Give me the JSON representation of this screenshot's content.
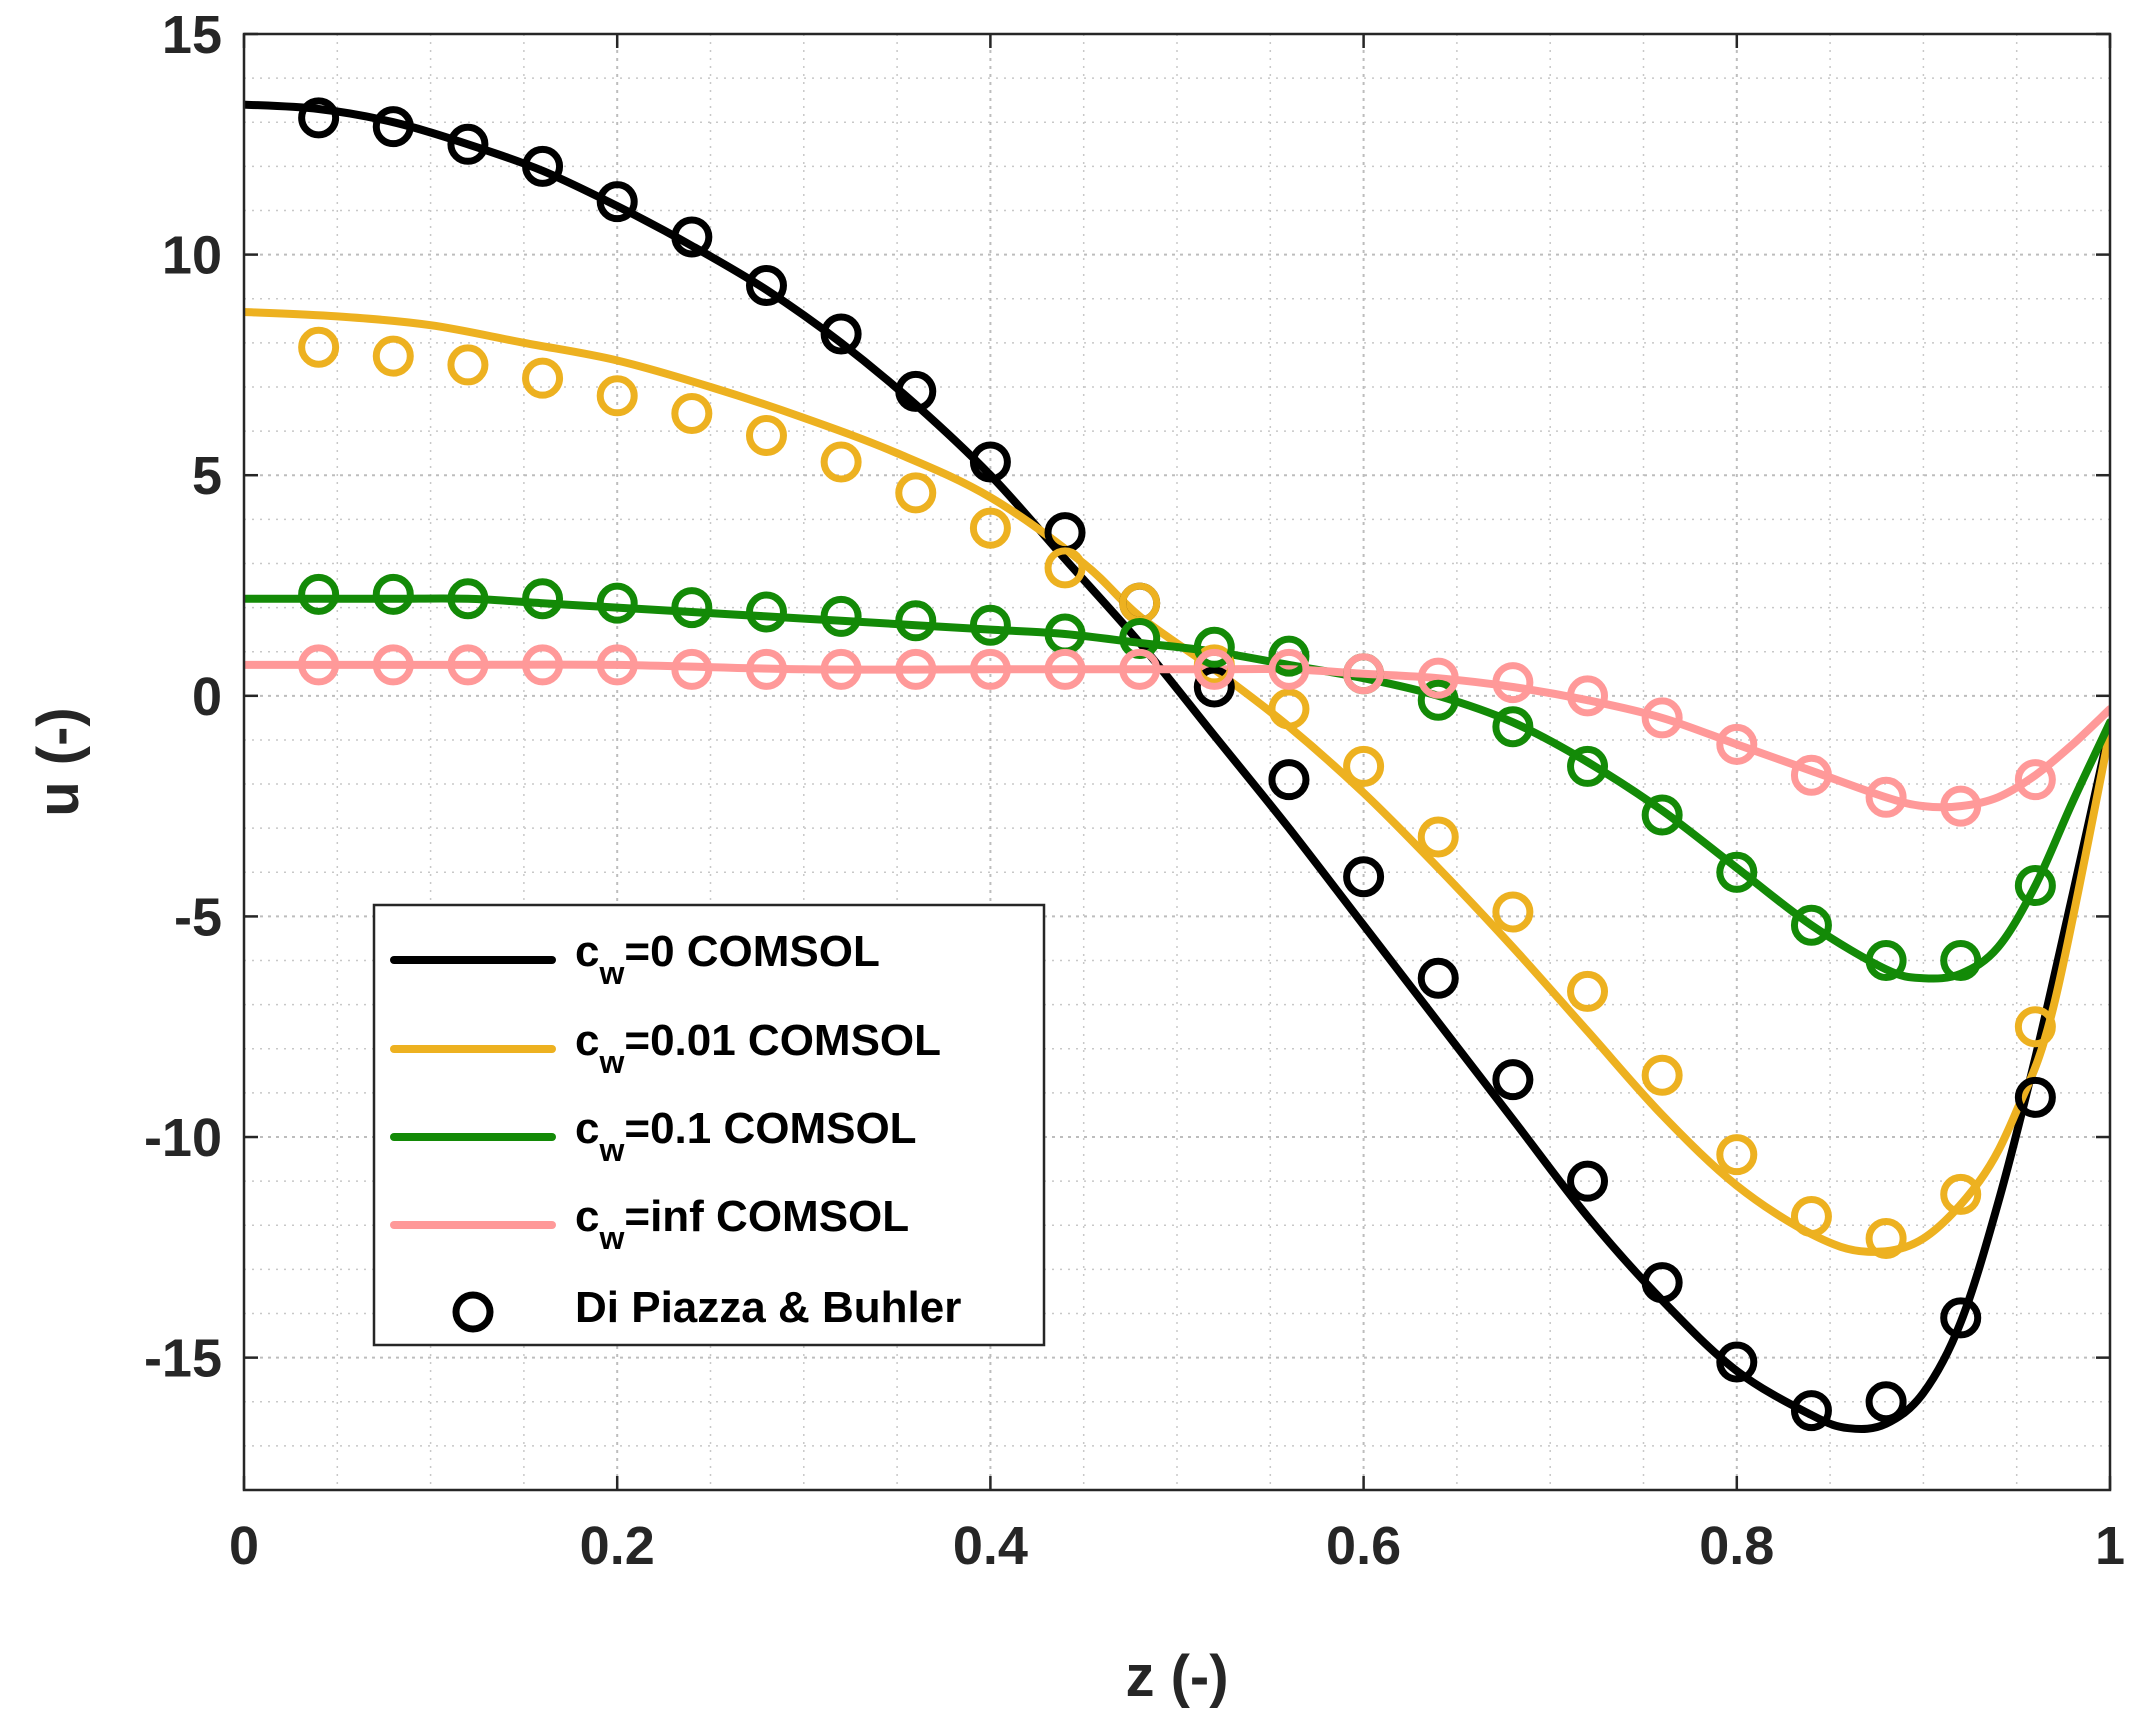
{
  "chart_data": {
    "type": "line",
    "title": "",
    "xlabel": "z (-)",
    "ylabel": "u (-)",
    "xlim": [
      0,
      1
    ],
    "ylim": [
      -18,
      15
    ],
    "xticks": [
      0,
      0.2,
      0.4,
      0.6,
      0.8,
      1
    ],
    "xtick_labels": [
      "0",
      "0.2",
      "0.4",
      "0.6",
      "0.8",
      "1"
    ],
    "yticks": [
      -15,
      -10,
      -5,
      0,
      5,
      10,
      15
    ],
    "ytick_labels": [
      "-15",
      "-10",
      "-5",
      "0",
      "5",
      "10",
      "15"
    ],
    "grid": true,
    "minor_grid": true,
    "legend_position": "bottom-left",
    "series": [
      {
        "name": "c_w=0 COMSOL",
        "legend_main": "c",
        "legend_sub": "w",
        "legend_rest": "=0 COMSOL",
        "color": "#000000",
        "kind": "line",
        "x": [
          0,
          0.04,
          0.08,
          0.12,
          0.16,
          0.2,
          0.24,
          0.28,
          0.32,
          0.36,
          0.4,
          0.44,
          0.48,
          0.52,
          0.56,
          0.6,
          0.64,
          0.68,
          0.72,
          0.76,
          0.8,
          0.84,
          0.86,
          0.88,
          0.9,
          0.92,
          0.94,
          0.96,
          0.98,
          1.0
        ],
        "y": [
          13.4,
          13.3,
          13.0,
          12.5,
          11.9,
          11.1,
          10.2,
          9.2,
          8.0,
          6.6,
          5.0,
          3.1,
          1.2,
          -0.9,
          -3.0,
          -5.2,
          -7.4,
          -9.6,
          -11.8,
          -13.7,
          -15.3,
          -16.3,
          -16.6,
          -16.5,
          -15.8,
          -14.2,
          -11.5,
          -8.2,
          -4.5,
          -0.7
        ]
      },
      {
        "name": "c_w=0.01 COMSOL",
        "legend_main": "c",
        "legend_sub": "w",
        "legend_rest": "=0.01 COMSOL",
        "color": "#EDB120",
        "kind": "line",
        "x": [
          0,
          0.05,
          0.1,
          0.15,
          0.2,
          0.25,
          0.3,
          0.35,
          0.4,
          0.45,
          0.48,
          0.52,
          0.56,
          0.6,
          0.64,
          0.68,
          0.72,
          0.76,
          0.8,
          0.84,
          0.87,
          0.9,
          0.93,
          0.95,
          0.97,
          1.0
        ],
        "y": [
          8.7,
          8.6,
          8.4,
          8.0,
          7.6,
          7.0,
          6.3,
          5.5,
          4.5,
          3.0,
          1.8,
          0.6,
          -0.7,
          -2.2,
          -3.9,
          -5.7,
          -7.6,
          -9.5,
          -11.1,
          -12.2,
          -12.6,
          -12.3,
          -11.0,
          -9.4,
          -7.0,
          -0.8
        ]
      },
      {
        "name": "c_w=0.1 COMSOL",
        "legend_main": "c",
        "legend_sub": "w",
        "legend_rest": "=0.1 COMSOL",
        "color": "#138A07",
        "kind": "line",
        "x": [
          0,
          0.04,
          0.08,
          0.12,
          0.16,
          0.2,
          0.24,
          0.28,
          0.32,
          0.36,
          0.4,
          0.44,
          0.48,
          0.52,
          0.56,
          0.6,
          0.64,
          0.68,
          0.72,
          0.76,
          0.8,
          0.84,
          0.88,
          0.9,
          0.92,
          0.94,
          0.96,
          0.98,
          1.0
        ],
        "y": [
          2.2,
          2.2,
          2.2,
          2.2,
          2.1,
          2.0,
          1.9,
          1.8,
          1.7,
          1.6,
          1.5,
          1.4,
          1.2,
          1.0,
          0.7,
          0.4,
          0.0,
          -0.6,
          -1.5,
          -2.6,
          -3.9,
          -5.2,
          -6.2,
          -6.4,
          -6.3,
          -5.7,
          -4.3,
          -2.4,
          -0.6
        ]
      },
      {
        "name": "c_w=inf COMSOL",
        "legend_main": "c",
        "legend_sub": "w",
        "legend_rest": "=inf COMSOL",
        "color": "#FF9999",
        "kind": "line",
        "x": [
          0,
          0.1,
          0.2,
          0.3,
          0.4,
          0.48,
          0.52,
          0.56,
          0.6,
          0.64,
          0.68,
          0.72,
          0.76,
          0.8,
          0.84,
          0.88,
          0.9,
          0.92,
          0.94,
          0.96,
          0.98,
          1.0
        ],
        "y": [
          0.7,
          0.7,
          0.7,
          0.6,
          0.6,
          0.6,
          0.6,
          0.6,
          0.5,
          0.4,
          0.2,
          -0.1,
          -0.5,
          -1.1,
          -1.7,
          -2.3,
          -2.5,
          -2.5,
          -2.3,
          -1.8,
          -1.1,
          -0.3
        ]
      },
      {
        "name": "Di Piazza & Buhler (c_w=0)",
        "color": "#000000",
        "kind": "markers",
        "x": [
          0.04,
          0.08,
          0.12,
          0.16,
          0.2,
          0.24,
          0.28,
          0.32,
          0.36,
          0.4,
          0.44,
          0.48,
          0.52,
          0.56,
          0.6,
          0.64,
          0.68,
          0.72,
          0.76,
          0.8,
          0.84,
          0.88,
          0.92,
          0.96
        ],
        "y": [
          13.1,
          12.9,
          12.5,
          12.0,
          11.2,
          10.4,
          9.3,
          8.2,
          6.9,
          5.3,
          3.7,
          2.1,
          0.2,
          -1.9,
          -4.1,
          -6.4,
          -8.7,
          -11.0,
          -13.3,
          -15.1,
          -16.2,
          -16.0,
          -14.1,
          -9.1
        ]
      },
      {
        "name": "Di Piazza & Buhler (c_w=0.01)",
        "color": "#EDB120",
        "kind": "markers",
        "x": [
          0.04,
          0.08,
          0.12,
          0.16,
          0.2,
          0.24,
          0.28,
          0.32,
          0.36,
          0.4,
          0.44,
          0.48,
          0.52,
          0.56,
          0.6,
          0.64,
          0.68,
          0.72,
          0.76,
          0.8,
          0.84,
          0.88,
          0.92,
          0.96
        ],
        "y": [
          7.9,
          7.7,
          7.5,
          7.2,
          6.8,
          6.4,
          5.9,
          5.3,
          4.6,
          3.8,
          2.9,
          2.1,
          0.7,
          -0.3,
          -1.6,
          -3.2,
          -4.9,
          -6.7,
          -8.6,
          -10.4,
          -11.8,
          -12.3,
          -11.3,
          -7.5
        ]
      },
      {
        "name": "Di Piazza & Buhler (c_w=0.1)",
        "color": "#138A07",
        "kind": "markers",
        "x": [
          0.04,
          0.08,
          0.12,
          0.16,
          0.2,
          0.24,
          0.28,
          0.32,
          0.36,
          0.4,
          0.44,
          0.48,
          0.52,
          0.56,
          0.6,
          0.64,
          0.68,
          0.72,
          0.76,
          0.8,
          0.84,
          0.88,
          0.92,
          0.96
        ],
        "y": [
          2.3,
          2.3,
          2.2,
          2.2,
          2.1,
          2.0,
          1.9,
          1.8,
          1.7,
          1.6,
          1.4,
          1.3,
          1.1,
          0.9,
          0.5,
          -0.1,
          -0.7,
          -1.6,
          -2.7,
          -4.0,
          -5.2,
          -6.0,
          -6.0,
          -4.3
        ]
      },
      {
        "name": "Di Piazza & Buhler (c_w=inf)",
        "color": "#FF9999",
        "kind": "markers",
        "x": [
          0.04,
          0.08,
          0.12,
          0.16,
          0.2,
          0.24,
          0.28,
          0.32,
          0.36,
          0.4,
          0.44,
          0.48,
          0.52,
          0.56,
          0.6,
          0.64,
          0.68,
          0.72,
          0.76,
          0.8,
          0.84,
          0.88,
          0.92,
          0.96
        ],
        "y": [
          0.7,
          0.7,
          0.7,
          0.7,
          0.7,
          0.6,
          0.6,
          0.6,
          0.6,
          0.6,
          0.6,
          0.6,
          0.6,
          0.6,
          0.5,
          0.4,
          0.3,
          0.0,
          -0.5,
          -1.1,
          -1.8,
          -2.3,
          -2.5,
          -1.9
        ]
      }
    ],
    "legend": [
      {
        "main": "c",
        "sub": "w",
        "rest": "=0 COMSOL",
        "color": "#000000",
        "kind": "line"
      },
      {
        "main": "c",
        "sub": "w",
        "rest": "=0.01 COMSOL",
        "color": "#EDB120",
        "kind": "line"
      },
      {
        "main": "c",
        "sub": "w",
        "rest": "=0.1 COMSOL",
        "color": "#138A07",
        "kind": "line"
      },
      {
        "main": "c",
        "sub": "w",
        "rest": "=inf COMSOL",
        "color": "#FF9999",
        "kind": "line"
      },
      {
        "main": "Di Piazza & Buhler",
        "sub": "",
        "rest": "",
        "color": "#000000",
        "kind": "marker"
      }
    ]
  }
}
